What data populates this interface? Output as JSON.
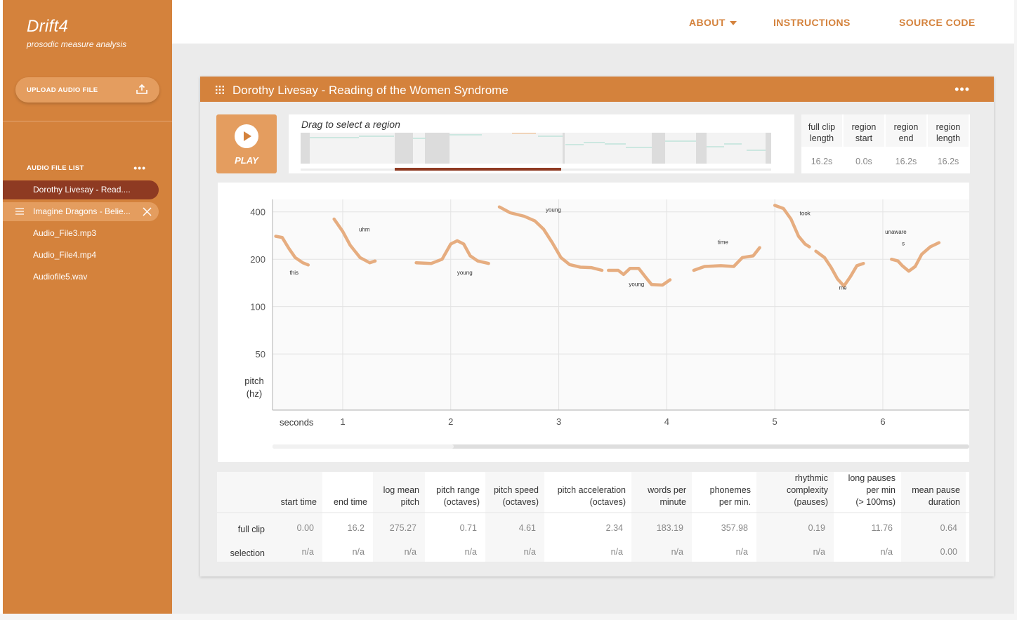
{
  "app": {
    "title": "Drift4",
    "subtitle": "prosodic measure analysis"
  },
  "sidebar": {
    "upload_label": "UPLOAD AUDIO FILE",
    "list_title": "AUDIO FILE LIST",
    "files": [
      {
        "name": "Dorothy Livesay - Read....",
        "state": "active"
      },
      {
        "name": "Imagine Dragons - Belie...",
        "state": "hover"
      },
      {
        "name": "Audio_File3.mp3",
        "state": "normal"
      },
      {
        "name": "Audio_File4.mp4",
        "state": "normal"
      },
      {
        "name": "Audiofile5.wav",
        "state": "normal"
      }
    ]
  },
  "nav": {
    "about": "ABOUT",
    "instructions": "INSTRUCTIONS",
    "source_code": "SOURCE CODE"
  },
  "panel": {
    "title": "Dorothy Livesay - Reading of the Women Syndrome",
    "play_label": "PLAY",
    "overview_hint": "Drag to select a region",
    "clip_info": {
      "headers": [
        [
          "full clip",
          "length"
        ],
        [
          "region",
          "start"
        ],
        [
          "region",
          "end"
        ],
        [
          "region",
          "length"
        ]
      ],
      "values": [
        "16.2s",
        "0.0s",
        "16.2s",
        "16.2s"
      ]
    }
  },
  "colors": {
    "accent": "#d4823c",
    "accent_light": "#e49d5f",
    "active": "#8e3a22",
    "pitch_line": "#e6ad80"
  },
  "chart_data": {
    "type": "line",
    "y_scale": "log",
    "y_ticks": [
      400,
      200,
      100,
      50
    ],
    "y_label": [
      "pitch",
      "(hz)"
    ],
    "x_label": "seconds",
    "x_ticks": [
      1,
      2,
      3,
      4,
      5,
      6
    ],
    "x_range": [
      0.35,
      6.8
    ],
    "y_range": [
      22,
      480
    ],
    "grid": true,
    "segments": [
      {
        "word": "this",
        "word_at": [
          0.55,
          160
        ],
        "points": [
          [
            0.38,
            280
          ],
          [
            0.44,
            275
          ],
          [
            0.5,
            235
          ],
          [
            0.56,
            205
          ],
          [
            0.63,
            190
          ],
          [
            0.68,
            184
          ]
        ]
      },
      {
        "word": "uhm",
        "word_at": [
          1.2,
          300
        ],
        "points": [
          [
            0.92,
            360
          ],
          [
            1.0,
            300
          ],
          [
            1.07,
            245
          ],
          [
            1.16,
            205
          ],
          [
            1.25,
            190
          ],
          [
            1.3,
            195
          ]
        ]
      },
      {
        "word": "young",
        "word_at": [
          2.13,
          160
        ],
        "points": [
          [
            1.68,
            190
          ],
          [
            1.82,
            188
          ],
          [
            1.92,
            200
          ],
          [
            2.0,
            250
          ],
          [
            2.06,
            262
          ],
          [
            2.12,
            250
          ],
          [
            2.18,
            210
          ],
          [
            2.25,
            195
          ],
          [
            2.35,
            188
          ]
        ]
      },
      {
        "word": "young",
        "word_at": [
          2.95,
          400
        ],
        "points": [
          [
            2.45,
            430
          ],
          [
            2.55,
            395
          ],
          [
            2.68,
            375
          ],
          [
            2.78,
            350
          ],
          [
            2.86,
            310
          ],
          [
            2.94,
            255
          ],
          [
            3.02,
            205
          ],
          [
            3.1,
            185
          ],
          [
            3.2,
            178
          ],
          [
            3.3,
            177
          ],
          [
            3.4,
            170
          ]
        ]
      },
      {
        "word": "young",
        "word_at": [
          3.72,
          135
        ],
        "points": [
          [
            3.46,
            170
          ],
          [
            3.55,
            170
          ],
          [
            3.6,
            160
          ],
          [
            3.66,
            175
          ],
          [
            3.74,
            175
          ],
          [
            3.8,
            155
          ],
          [
            3.86,
            138
          ],
          [
            3.96,
            137
          ],
          [
            4.03,
            148
          ]
        ]
      },
      {
        "word": "time",
        "word_at": [
          4.52,
          250
        ],
        "points": [
          [
            4.25,
            170
          ],
          [
            4.35,
            180
          ],
          [
            4.5,
            182
          ],
          [
            4.62,
            180
          ],
          [
            4.7,
            205
          ],
          [
            4.8,
            210
          ],
          [
            4.86,
            237
          ]
        ]
      },
      {
        "word": "took",
        "word_at": [
          5.28,
          380
        ],
        "points": [
          [
            5.0,
            440
          ],
          [
            5.08,
            420
          ],
          [
            5.15,
            360
          ],
          [
            5.22,
            280
          ],
          [
            5.28,
            250
          ],
          [
            5.32,
            240
          ]
        ]
      },
      {
        "word": "me",
        "word_at": [
          5.63,
          128
        ],
        "points": [
          [
            5.38,
            225
          ],
          [
            5.46,
            205
          ],
          [
            5.52,
            178
          ],
          [
            5.58,
            150
          ],
          [
            5.64,
            135
          ],
          [
            5.7,
            155
          ],
          [
            5.76,
            182
          ],
          [
            5.82,
            188
          ]
        ]
      },
      {
        "word": "unaware",
        "word_at": [
          6.12,
          290
        ],
        "points": [
          [
            6.08,
            200
          ],
          [
            6.14,
            195
          ],
          [
            6.18,
            182
          ],
          [
            6.24,
            168
          ],
          [
            6.3,
            180
          ],
          [
            6.36,
            215
          ],
          [
            6.44,
            240
          ],
          [
            6.52,
            255
          ]
        ]
      }
    ],
    "extra_labels": [
      {
        "text": "s",
        "at": [
          6.19,
          245
        ]
      }
    ]
  },
  "stats": {
    "headers": [
      [
        "",
        "start time"
      ],
      [
        "",
        "end time"
      ],
      [
        "log mean",
        "pitch"
      ],
      [
        "pitch range",
        "(octaves)"
      ],
      [
        "pitch speed",
        "(octaves)"
      ],
      [
        "pitch acceleration",
        "(octaves)"
      ],
      [
        "words per",
        "minute"
      ],
      [
        "phonemes",
        "per min."
      ],
      [
        "rhythmic",
        "complexity",
        "(pauses)"
      ],
      [
        "long pauses",
        "per min",
        "(> 100ms)"
      ],
      [
        "mean pause",
        "duration"
      ]
    ],
    "rows": [
      {
        "label": "full clip",
        "values": [
          "0.00",
          "16.2",
          "275.27",
          "0.71",
          "4.61",
          "2.34",
          "183.19",
          "357.98",
          "0.19",
          "11.76",
          "0.64"
        ]
      },
      {
        "label": "selection",
        "values": [
          "n/a",
          "n/a",
          "n/a",
          "n/a",
          "n/a",
          "n/a",
          "n/a",
          "n/a",
          "n/a",
          "n/a",
          "0.00"
        ]
      }
    ]
  }
}
